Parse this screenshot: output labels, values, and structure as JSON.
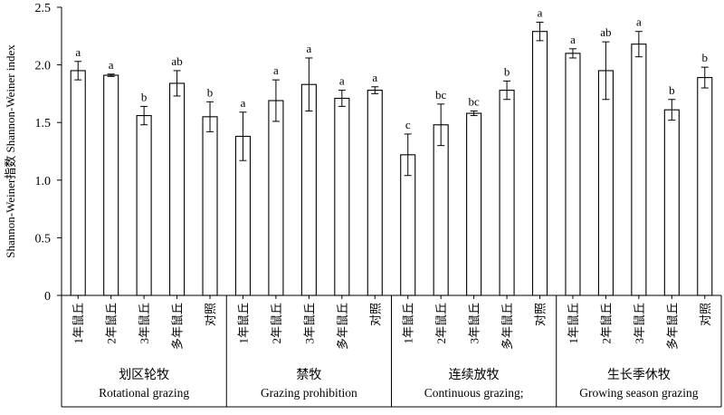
{
  "chart_data": {
    "type": "bar",
    "ylabel": "Shannon-Weiner指数 Shannon-Weiner index",
    "ylim": [
      0,
      2.5
    ],
    "yticks": [
      "0",
      "0.5",
      "1.0",
      "1.5",
      "2.0",
      "2.5"
    ],
    "ytick_values": [
      0,
      0.5,
      1.0,
      1.5,
      2.0,
      2.5
    ],
    "grid": false,
    "legend": "none",
    "bar_fill": "#ffffff",
    "bar_stroke": "#000000",
    "groups": [
      {
        "label_zh": "划区轮牧",
        "label_en": "Rotational grazing",
        "categories": [
          "1年鼠丘",
          "2年鼠丘",
          "3年鼠丘",
          "多年鼠丘",
          "对照"
        ],
        "values": [
          1.95,
          1.91,
          1.56,
          1.84,
          1.55
        ],
        "errors": [
          0.08,
          0.01,
          0.08,
          0.11,
          0.13
        ],
        "significance": [
          "a",
          "a",
          "b",
          "ab",
          "b"
        ]
      },
      {
        "label_zh": "禁牧",
        "label_en": "Grazing prohibition",
        "categories": [
          "1年鼠丘",
          "2年鼠丘",
          "3年鼠丘",
          "多年鼠丘",
          "对照"
        ],
        "values": [
          1.38,
          1.69,
          1.83,
          1.71,
          1.78
        ],
        "errors": [
          0.21,
          0.18,
          0.23,
          0.07,
          0.03
        ],
        "significance": [
          "a",
          "a",
          "a",
          "a",
          "a"
        ]
      },
      {
        "label_zh": "连续放牧",
        "label_en": "Continuous grazing;",
        "categories": [
          "1年鼠丘",
          "2年鼠丘",
          "3年鼠丘",
          "多年鼠丘",
          "对照"
        ],
        "values": [
          1.22,
          1.48,
          1.58,
          1.78,
          2.29
        ],
        "errors": [
          0.18,
          0.18,
          0.02,
          0.08,
          0.08
        ],
        "significance": [
          "c",
          "bc",
          "bc",
          "b",
          "a"
        ]
      },
      {
        "label_zh": "生长季休牧",
        "label_en": "Growing season grazing",
        "categories": [
          "1年鼠丘",
          "2年鼠丘",
          "3年鼠丘",
          "多年鼠丘",
          "对照"
        ],
        "values": [
          2.1,
          1.95,
          2.18,
          1.61,
          1.89
        ],
        "errors": [
          0.04,
          0.25,
          0.11,
          0.09,
          0.09
        ],
        "significance": [
          "a",
          "ab",
          "a",
          "b",
          "b"
        ]
      }
    ]
  }
}
